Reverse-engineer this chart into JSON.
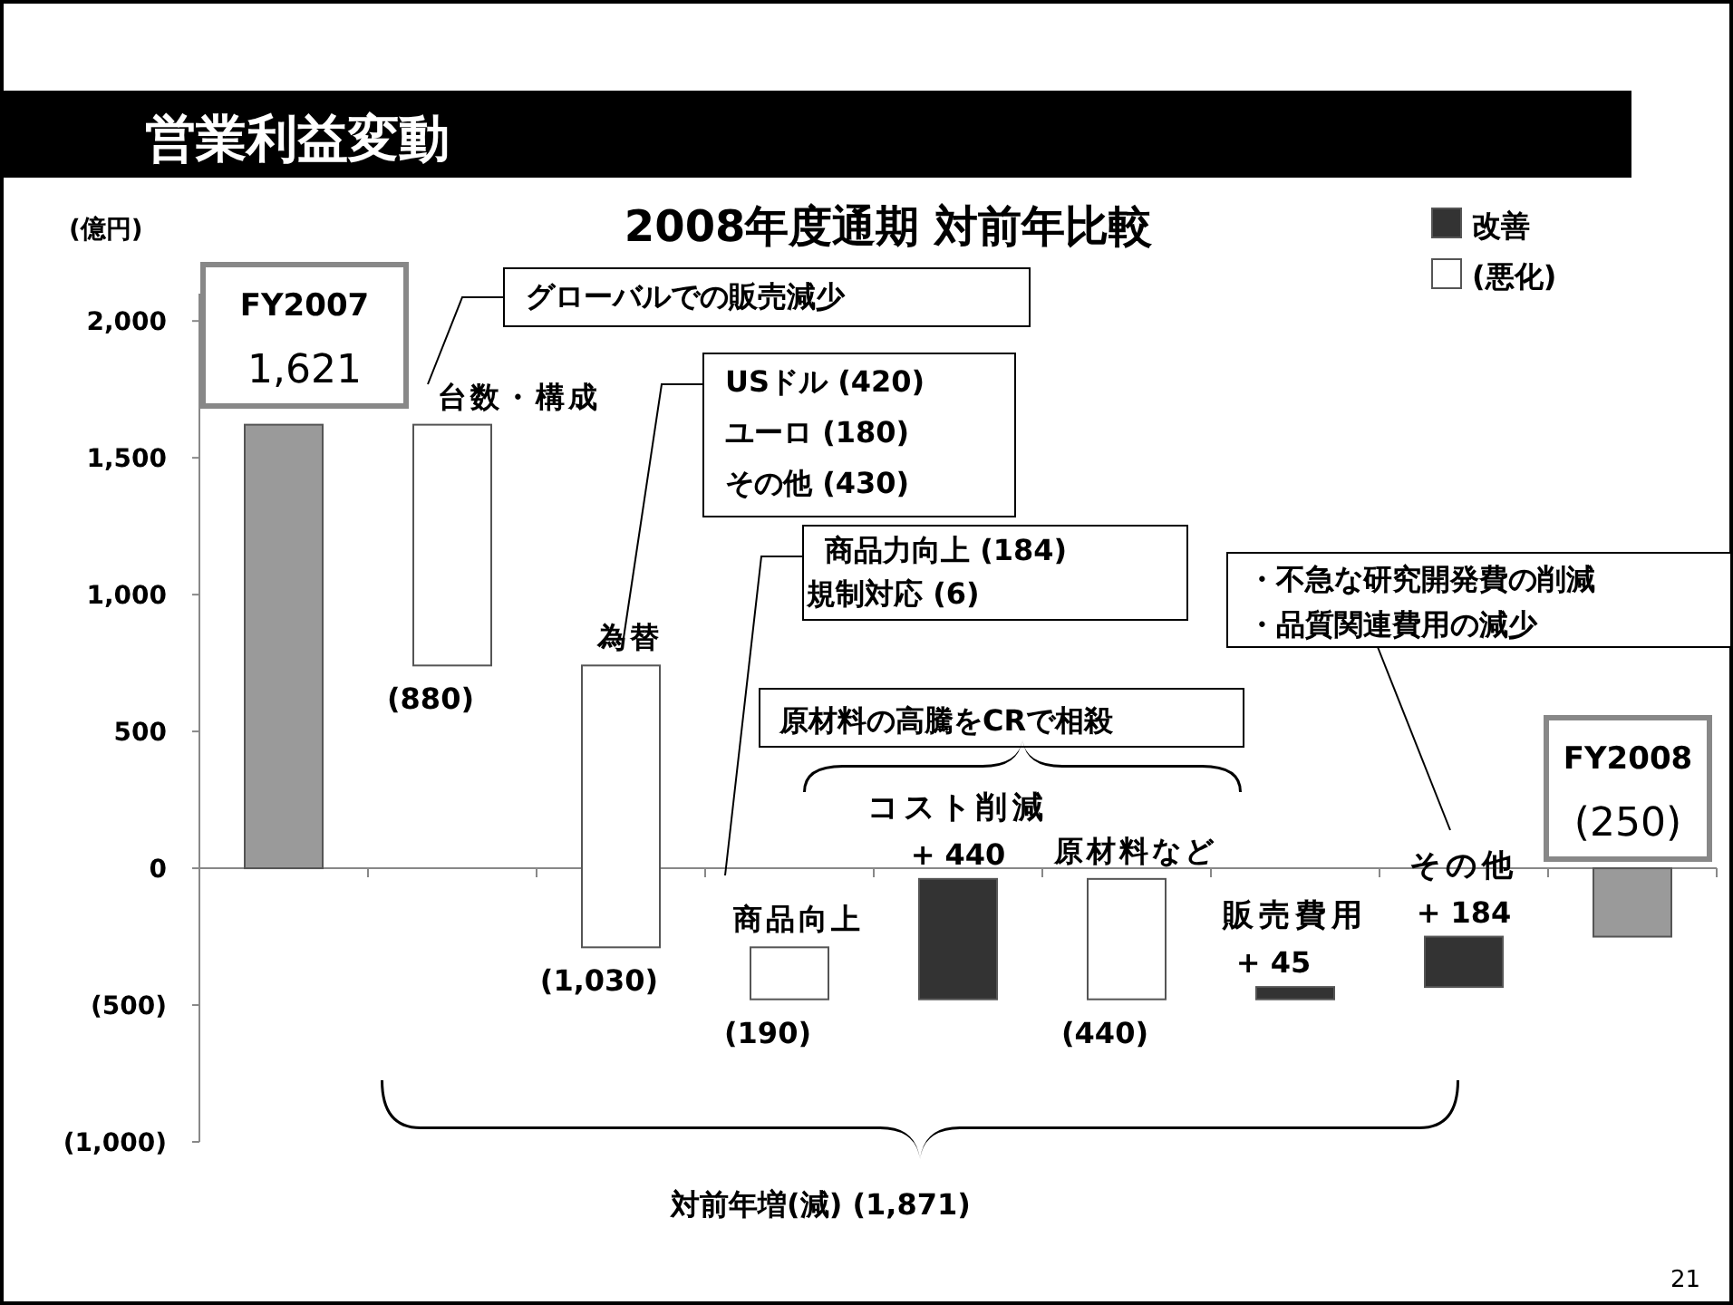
{
  "chart_data": {
    "type": "bar",
    "title": "営業利益変動",
    "subtitle": "2008年度通期 対前年比較",
    "ylabel": "(億円)",
    "categories": [
      "FY2007",
      "台数・構成",
      "為替",
      "商品向上",
      "コスト削減",
      "原材料など",
      "販売費用",
      "その他",
      "FY2008"
    ],
    "series": [
      {
        "color": "#9a9a9a",
        "base": [
          null,
          null,
          null,
          null,
          null,
          null,
          null,
          null,
          null
        ],
        "values": [
          1621,
          null,
          null,
          null,
          null,
          null,
          null,
          null,
          -250
        ],
        "value_labels": [
          "1,621",
          null,
          null,
          null,
          null,
          null,
          null,
          null,
          "(250)"
        ]
      },
      {
        "name": "改善",
        "color": "#333333",
        "base": [
          null,
          null,
          null,
          null,
          -479,
          null,
          -479,
          -434,
          null
        ],
        "values": [
          null,
          null,
          null,
          null,
          440,
          null,
          45,
          184,
          null
        ],
        "value_labels": [
          null,
          null,
          null,
          null,
          "+ 440",
          null,
          "+ 45",
          "+ 184",
          null
        ]
      },
      {
        "name": "(悪化)",
        "color": "#ffffff",
        "base": [
          null,
          1621,
          741,
          -289,
          null,
          -39,
          null,
          null,
          null
        ],
        "values": [
          null,
          -880,
          -1030,
          -190,
          null,
          -440,
          null,
          null,
          null
        ],
        "value_labels": [
          null,
          "(880)",
          "(1,030)",
          "(190)",
          null,
          "(440)",
          null,
          null,
          null
        ]
      }
    ],
    "ylim": [
      -1000,
      2100
    ],
    "yticks": [
      {
        "value": -1000,
        "label": "(1,000)"
      },
      {
        "value": -500,
        "label": "(500)"
      },
      0,
      {
        "value": 500,
        "label": "500"
      },
      {
        "value": 1000,
        "label": "1,000"
      },
      {
        "value": 1500,
        "label": "1,500"
      },
      {
        "value": 2000,
        "label": "2,000"
      }
    ],
    "grid": false,
    "legend": "top right",
    "annotations": [
      "グローバルでの販売減少",
      "USドル (420)",
      "ユーロ (180)",
      "その他 (430)",
      "商品力向上 (184)",
      "規制対応 (6)",
      "原材料の高騰をCRで相殺",
      "・不急な研究開発費の削減",
      "・品質関連費用の減少",
      "対前年増(減) (1,871)",
      "21"
    ]
  }
}
